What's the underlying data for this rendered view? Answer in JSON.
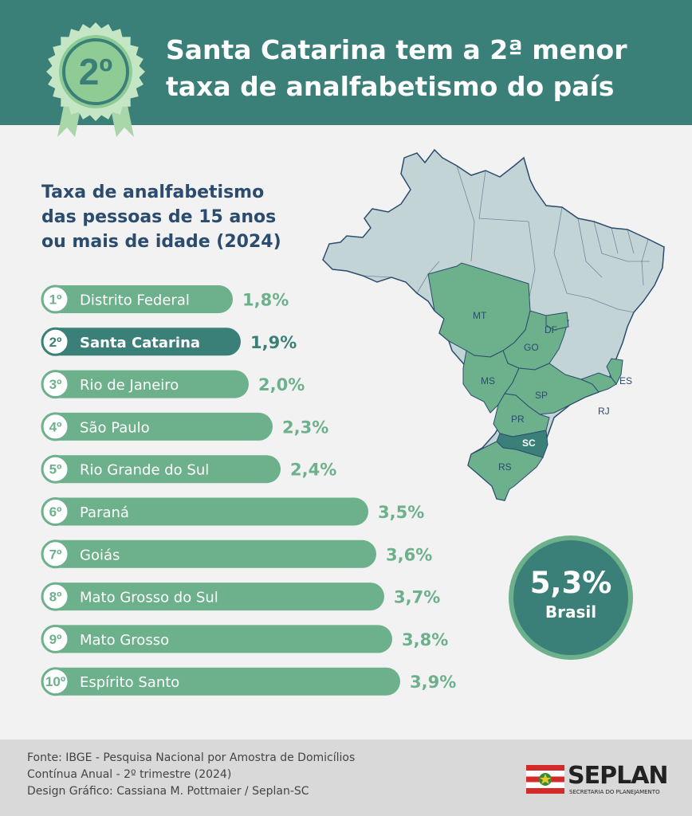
{
  "header": {
    "title_line1": "Santa Catarina tem a 2ª menor",
    "title_line2": "taxa de analfabetismo do país",
    "badge_text": "2º"
  },
  "chart_data": {
    "type": "bar",
    "title": "Taxa de analfabetismo das pessoas de 15 anos ou mais de idade (2024)",
    "title_lines": [
      "Taxa de analfabetismo",
      "das pessoas de 15 anos",
      "ou mais de idade (2024)"
    ],
    "ranks": [
      "1º",
      "2º",
      "3º",
      "4º",
      "5º",
      "6º",
      "7º",
      "8º",
      "9º",
      "10º"
    ],
    "categories": [
      "Distrito Federal",
      "Santa Catarina",
      "Rio de Janeiro",
      "São Paulo",
      "Rio Grande do Sul",
      "Paraná",
      "Goiás",
      "Mato Grosso do Sul",
      "Mato Grosso",
      "Espírito Santo"
    ],
    "values": [
      1.8,
      1.9,
      2.0,
      2.3,
      2.4,
      3.5,
      3.6,
      3.7,
      3.8,
      3.9
    ],
    "value_labels": [
      "1,8%",
      "1,9%",
      "2,0%",
      "2,3%",
      "2,4%",
      "3,5%",
      "3,6%",
      "3,7%",
      "3,8%",
      "3,9%"
    ],
    "highlight_index": 1,
    "orientation": "horizontal",
    "colors": {
      "bar": "#6db08c",
      "highlight": "#3a8079",
      "label": "#6db08c",
      "highlight_label": "#3a8079"
    }
  },
  "map": {
    "highlighted_states": [
      "MT",
      "GO",
      "DF",
      "MS",
      "SP",
      "PR",
      "SC",
      "RS",
      "RJ",
      "ES"
    ],
    "colors": {
      "base": "#c3d4d6",
      "highlight": "#6db08c",
      "sc": "#3a8079",
      "border": "#2b4c6f"
    }
  },
  "brasil": {
    "value": "5,3%",
    "label": "Brasil"
  },
  "footer": {
    "source_line1": "Fonte: IBGE - Pesquisa Nacional por Amostra de Domicílios",
    "source_line2": "Contínua Anual - 2º trimestre (2024)",
    "credit": "Design Gráfico: Cassiana M. Pottmaier / Seplan-SC",
    "logo_text": "SEPLAN",
    "logo_sub": "SECRETARIA DO PLANEJAMENTO"
  },
  "colors": {
    "header_bg": "#3a8079",
    "page_bg": "#f2f2f2",
    "footer_bg": "#d9d9d9",
    "accent": "#6db08c",
    "title_text": "#2b4c6f"
  }
}
